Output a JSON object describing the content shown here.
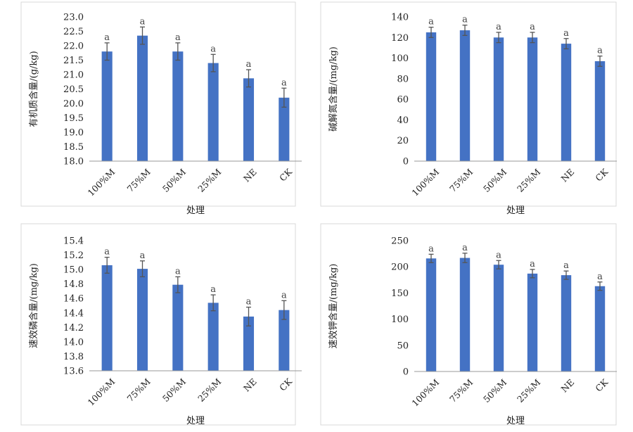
{
  "colors": {
    "bar": "#4472C4",
    "error_bar": "#555555",
    "axis": "#999999",
    "frame": "#d9d9d9"
  },
  "chart_data": [
    {
      "type": "bar",
      "title": "",
      "categories": [
        "100%M",
        "75%M",
        "50%M",
        "25%M",
        "NE",
        "CK"
      ],
      "values": [
        21.8,
        22.35,
        21.8,
        21.4,
        20.87,
        20.2
      ],
      "errors": [
        0.3,
        0.3,
        0.3,
        0.3,
        0.3,
        0.33
      ],
      "significance": [
        "a",
        "a",
        "a",
        "a",
        "a",
        "a"
      ],
      "xlabel": "处理",
      "ylabel": "有机质含量/(g/kg)",
      "ylim": [
        18.0,
        23.0
      ],
      "yticks": [
        "18.0",
        "18.5",
        "19.0",
        "19.5",
        "20.0",
        "20.5",
        "21.0",
        "21.5",
        "22.0",
        "22.5",
        "23.0"
      ],
      "grid": false
    },
    {
      "type": "bar",
      "title": "",
      "categories": [
        "100%M",
        "75%M",
        "50%M",
        "25%M",
        "NE",
        "CK"
      ],
      "values": [
        125,
        127,
        120,
        120,
        114,
        97
      ],
      "errors": [
        5,
        5,
        5,
        5,
        5,
        5
      ],
      "significance": [
        "a",
        "a",
        "a",
        "a",
        "a",
        "a"
      ],
      "xlabel": "处理",
      "ylabel": "碱解氮含量/(mg/kg)",
      "ylim": [
        0,
        140
      ],
      "yticks": [
        "0",
        "20",
        "40",
        "60",
        "80",
        "100",
        "120",
        "140"
      ],
      "grid": false
    },
    {
      "type": "bar",
      "title": "",
      "categories": [
        "100%M",
        "75%M",
        "50%M",
        "25%M",
        "NE",
        "CK"
      ],
      "values": [
        15.06,
        15.01,
        14.79,
        14.54,
        14.35,
        14.44
      ],
      "errors": [
        0.11,
        0.11,
        0.11,
        0.11,
        0.13,
        0.13
      ],
      "significance": [
        "a",
        "a",
        "a",
        "a",
        "a",
        "a"
      ],
      "xlabel": "处理",
      "ylabel": "速效磷含量/(mg/kg)",
      "ylim": [
        13.6,
        15.4
      ],
      "yticks": [
        "13.6",
        "13.8",
        "14.0",
        "14.2",
        "14.4",
        "14.6",
        "14.8",
        "15.0",
        "15.2",
        "15.4"
      ],
      "grid": false
    },
    {
      "type": "bar",
      "title": "",
      "categories": [
        "100%M",
        "75%M",
        "50%M",
        "25%M",
        "NE",
        "CK"
      ],
      "values": [
        216,
        217,
        204,
        187,
        184,
        163
      ],
      "errors": [
        8,
        9,
        8,
        8,
        8,
        8
      ],
      "significance": [
        "a",
        "a",
        "a",
        "a",
        "a",
        "a"
      ],
      "xlabel": "处理",
      "ylabel": "速效钾含量/(mg/kg)",
      "ylim": [
        0,
        250
      ],
      "yticks": [
        "0",
        "50",
        "100",
        "150",
        "200",
        "250"
      ],
      "grid": false
    }
  ]
}
